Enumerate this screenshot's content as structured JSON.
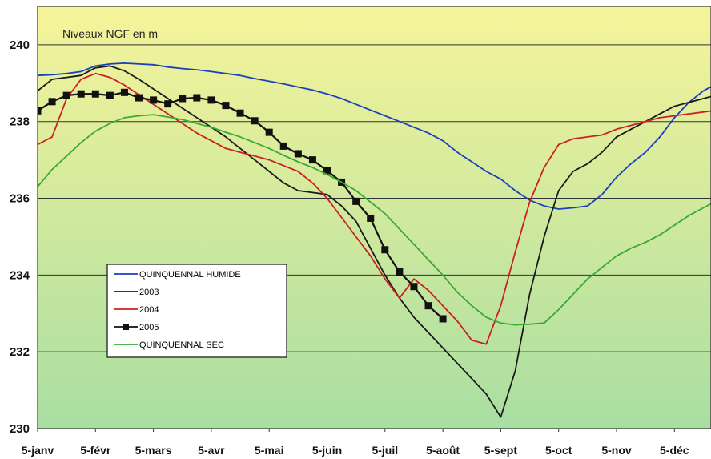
{
  "chart_data": {
    "type": "line",
    "annotation": "Niveaux NGF en m",
    "x_tick_labels": [
      "5-janv",
      "5-févr",
      "5-mars",
      "5-avr",
      "5-mai",
      "5-juin",
      "5-juil",
      "5-août",
      "5-sept",
      "5-oct",
      "5-nov",
      "5-déc"
    ],
    "ylim": [
      230,
      241
    ],
    "y_ticks": [
      230,
      232,
      234,
      236,
      238,
      240
    ],
    "grid": true,
    "legend_position": "bottom-left",
    "colors": {
      "background_top": "#f6f49a",
      "background_bottom": "#a9dea2",
      "grid": "#333333"
    },
    "series": [
      {
        "name": "QUINQUENNAL HUMIDE",
        "color": "#1c3fbf",
        "marker": "none",
        "x": [
          0,
          0.25,
          0.5,
          0.75,
          1,
          1.25,
          1.5,
          1.75,
          2,
          2.25,
          2.5,
          2.75,
          3,
          3.25,
          3.5,
          3.75,
          4,
          4.25,
          4.5,
          4.75,
          5,
          5.25,
          5.5,
          5.75,
          6,
          6.25,
          6.5,
          6.75,
          7,
          7.25,
          7.5,
          7.75,
          8,
          8.25,
          8.5,
          8.75,
          9,
          9.25,
          9.5,
          9.75,
          10,
          10.25,
          10.5,
          10.75,
          11,
          11.25,
          11.5,
          11.75,
          12
        ],
        "y": [
          239.2,
          239.22,
          239.25,
          239.3,
          239.45,
          239.5,
          239.52,
          239.5,
          239.48,
          239.42,
          239.38,
          239.35,
          239.3,
          239.25,
          239.2,
          239.12,
          239.05,
          238.98,
          238.9,
          238.82,
          238.72,
          238.6,
          238.45,
          238.3,
          238.15,
          238.0,
          237.85,
          237.7,
          237.5,
          237.2,
          236.95,
          236.7,
          236.5,
          236.2,
          235.95,
          235.8,
          235.72,
          235.75,
          235.8,
          236.1,
          236.55,
          236.9,
          237.2,
          237.6,
          238.1,
          238.5,
          238.8,
          239.0,
          239.1
        ]
      },
      {
        "name": "2003",
        "color": "#1a1a1a",
        "marker": "none",
        "x": [
          0,
          0.25,
          0.5,
          0.75,
          1,
          1.25,
          1.5,
          1.75,
          2,
          2.25,
          2.5,
          2.75,
          3,
          3.25,
          3.5,
          3.75,
          4,
          4.25,
          4.5,
          4.75,
          5,
          5.25,
          5.5,
          5.75,
          6,
          6.25,
          6.5,
          6.75,
          7,
          7.25,
          7.5,
          7.75,
          8,
          8.25,
          8.5,
          8.75,
          9,
          9.25,
          9.5,
          9.75,
          10,
          10.25,
          10.5,
          10.75,
          11,
          11.25,
          11.5,
          11.75,
          12
        ],
        "y": [
          238.8,
          239.1,
          239.15,
          239.2,
          239.4,
          239.45,
          239.32,
          239.1,
          238.85,
          238.6,
          238.35,
          238.1,
          237.85,
          237.6,
          237.3,
          237.0,
          236.7,
          236.4,
          236.2,
          236.15,
          236.1,
          235.8,
          235.4,
          234.7,
          234.0,
          233.4,
          232.9,
          232.5,
          232.1,
          231.7,
          231.3,
          230.9,
          230.3,
          231.5,
          233.5,
          235.0,
          236.2,
          236.7,
          236.9,
          237.2,
          237.6,
          237.8,
          238.0,
          238.2,
          238.4,
          238.5,
          238.6,
          238.7,
          238.8
        ]
      },
      {
        "name": "2004",
        "color": "#cc2020",
        "marker": "none",
        "x": [
          0,
          0.25,
          0.5,
          0.75,
          1,
          1.25,
          1.5,
          1.75,
          2,
          2.25,
          2.5,
          2.75,
          3,
          3.25,
          3.5,
          3.75,
          4,
          4.25,
          4.5,
          4.75,
          5,
          5.25,
          5.5,
          5.75,
          6,
          6.25,
          6.5,
          6.75,
          7,
          7.25,
          7.5,
          7.75,
          8,
          8.25,
          8.5,
          8.75,
          9,
          9.25,
          9.5,
          9.75,
          10,
          10.25,
          10.5,
          10.75,
          11,
          11.25,
          11.5,
          11.75,
          12
        ],
        "y": [
          237.4,
          237.6,
          238.6,
          239.1,
          239.25,
          239.15,
          238.95,
          238.7,
          238.45,
          238.2,
          237.95,
          237.7,
          237.5,
          237.3,
          237.2,
          237.1,
          237.0,
          236.85,
          236.7,
          236.4,
          236.0,
          235.5,
          235.0,
          234.5,
          233.9,
          233.4,
          233.9,
          233.6,
          233.2,
          232.8,
          232.3,
          232.2,
          233.2,
          234.6,
          235.9,
          236.8,
          237.4,
          237.55,
          237.6,
          237.65,
          237.8,
          237.9,
          238.0,
          238.1,
          238.15,
          238.2,
          238.25,
          238.3,
          238.35
        ]
      },
      {
        "name": "2005",
        "color": "#111111",
        "marker": "square",
        "x": [
          0,
          0.25,
          0.5,
          0.75,
          1,
          1.25,
          1.5,
          1.75,
          2,
          2.25,
          2.5,
          2.75,
          3,
          3.25,
          3.5,
          3.75,
          4,
          4.25,
          4.5,
          4.75,
          5,
          5.25,
          5.5,
          5.75,
          6,
          6.25,
          6.5,
          6.75,
          7,
          7.25,
          7.5
        ],
        "y": [
          238.28,
          238.52,
          238.68,
          238.72,
          238.72,
          238.68,
          238.76,
          238.62,
          238.56,
          238.46,
          238.6,
          238.62,
          238.56,
          238.42,
          238.22,
          238.02,
          237.72,
          237.36,
          237.16,
          237.0,
          236.72,
          236.42,
          235.92,
          235.48,
          234.66,
          234.08,
          233.7,
          233.2,
          232.86,
          null,
          null
        ]
      },
      {
        "name": "QUINQUENNAL SEC",
        "color": "#3aaa35",
        "marker": "none",
        "x": [
          0,
          0.25,
          0.5,
          0.75,
          1,
          1.25,
          1.5,
          1.75,
          2,
          2.25,
          2.5,
          2.75,
          3,
          3.25,
          3.5,
          3.75,
          4,
          4.25,
          4.5,
          4.75,
          5,
          5.25,
          5.5,
          5.75,
          6,
          6.25,
          6.5,
          6.75,
          7,
          7.25,
          7.5,
          7.75,
          8,
          8.25,
          8.5,
          8.75,
          9,
          9.25,
          9.5,
          9.75,
          10,
          10.25,
          10.5,
          10.75,
          11,
          11.25,
          11.5,
          11.75,
          12
        ],
        "y": [
          236.3,
          236.75,
          237.1,
          237.45,
          237.75,
          237.95,
          238.1,
          238.15,
          238.18,
          238.12,
          238.05,
          237.95,
          237.85,
          237.72,
          237.6,
          237.45,
          237.3,
          237.12,
          236.95,
          236.8,
          236.62,
          236.42,
          236.2,
          235.9,
          235.6,
          235.2,
          234.8,
          234.4,
          234.0,
          233.55,
          233.2,
          232.9,
          232.75,
          232.7,
          232.72,
          232.75,
          233.1,
          233.5,
          233.9,
          234.2,
          234.5,
          234.7,
          234.85,
          235.05,
          235.3,
          235.55,
          235.75,
          235.95,
          236.1
        ]
      }
    ]
  }
}
